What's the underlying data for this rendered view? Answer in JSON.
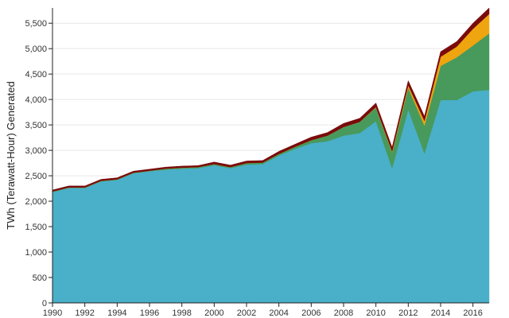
{
  "chart_data": {
    "type": "area",
    "stacked": true,
    "title": "",
    "xlabel": "",
    "ylabel": "TWh (Terawatt-Hour) Generated",
    "xlim": [
      1990,
      2017
    ],
    "ylim": [
      0,
      5800
    ],
    "grid": true,
    "legend": "none",
    "x_ticks": [
      1990,
      1992,
      1994,
      1996,
      1998,
      2000,
      2002,
      2004,
      2006,
      2008,
      2010,
      2012,
      2014,
      2016
    ],
    "x_tick_labels": [
      "1990",
      "1992",
      "1994",
      "1996",
      "1998",
      "2000",
      "2002",
      "2004",
      "2006",
      "2008",
      "2010",
      "2012",
      "2014",
      "2016"
    ],
    "y_ticks": [
      0,
      500,
      1000,
      1500,
      2000,
      2500,
      3000,
      3500,
      4000,
      4500,
      5000,
      5500
    ],
    "y_tick_labels": [
      "0",
      "500",
      "1,000",
      "1,500",
      "2,000",
      "2,500",
      "3,000",
      "3,500",
      "4,000",
      "4,500",
      "5,000",
      "5,500"
    ],
    "x": [
      1990,
      1991,
      1992,
      1993,
      1994,
      1995,
      1996,
      1997,
      1998,
      1999,
      2000,
      2001,
      2002,
      2003,
      2004,
      2005,
      2006,
      2007,
      2008,
      2009,
      2010,
      2011,
      2012,
      2013,
      2014,
      2015,
      2016,
      2017
    ],
    "series": [
      {
        "color": "#4aafc8",
        "values": [
          2180,
          2260,
          2260,
          2390,
          2420,
          2550,
          2590,
          2620,
          2640,
          2650,
          2710,
          2650,
          2720,
          2730,
          2900,
          3030,
          3140,
          3180,
          3290,
          3340,
          3570,
          2650,
          3800,
          2940,
          3990,
          3990,
          4160,
          4190
        ]
      },
      {
        "color": "#479a5c",
        "values": [
          10,
          10,
          10,
          10,
          10,
          10,
          10,
          20,
          20,
          20,
          20,
          20,
          30,
          30,
          30,
          40,
          60,
          110,
          170,
          220,
          270,
          310,
          430,
          550,
          670,
          840,
          900,
          1110
        ]
      },
      {
        "color": "#eea50f",
        "values": [
          0,
          0,
          0,
          0,
          0,
          0,
          0,
          0,
          0,
          0,
          0,
          0,
          0,
          0,
          0,
          0,
          0,
          0,
          0,
          0,
          10,
          20,
          50,
          90,
          180,
          210,
          330,
          380
        ]
      },
      {
        "color": "#7a0b0b",
        "values": [
          30,
          30,
          30,
          30,
          30,
          30,
          30,
          30,
          30,
          30,
          40,
          40,
          40,
          40,
          50,
          50,
          60,
          60,
          70,
          70,
          80,
          80,
          90,
          90,
          100,
          100,
          110,
          120
        ]
      }
    ]
  }
}
